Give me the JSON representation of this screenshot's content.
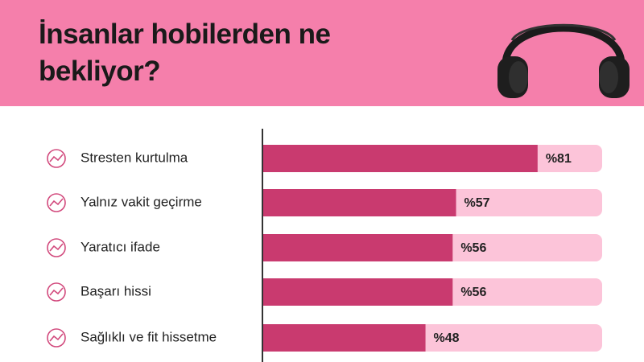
{
  "chart_data": {
    "type": "hbar",
    "title": "İnsanlar hobilerden ne bekliyor?",
    "categories": [
      "Stresten kurtulma",
      "Yalnız vakit geçirme",
      "Yaratıcı ifade",
      "Başarı hissi",
      "Sağlıklı ve fit hissetme"
    ],
    "values": [
      81,
      57,
      56,
      56,
      48
    ],
    "value_labels": [
      "%81",
      "%57",
      "%56",
      "%56",
      "%48"
    ],
    "color": "#c93a6f",
    "xlim": [
      0,
      100
    ]
  }
}
